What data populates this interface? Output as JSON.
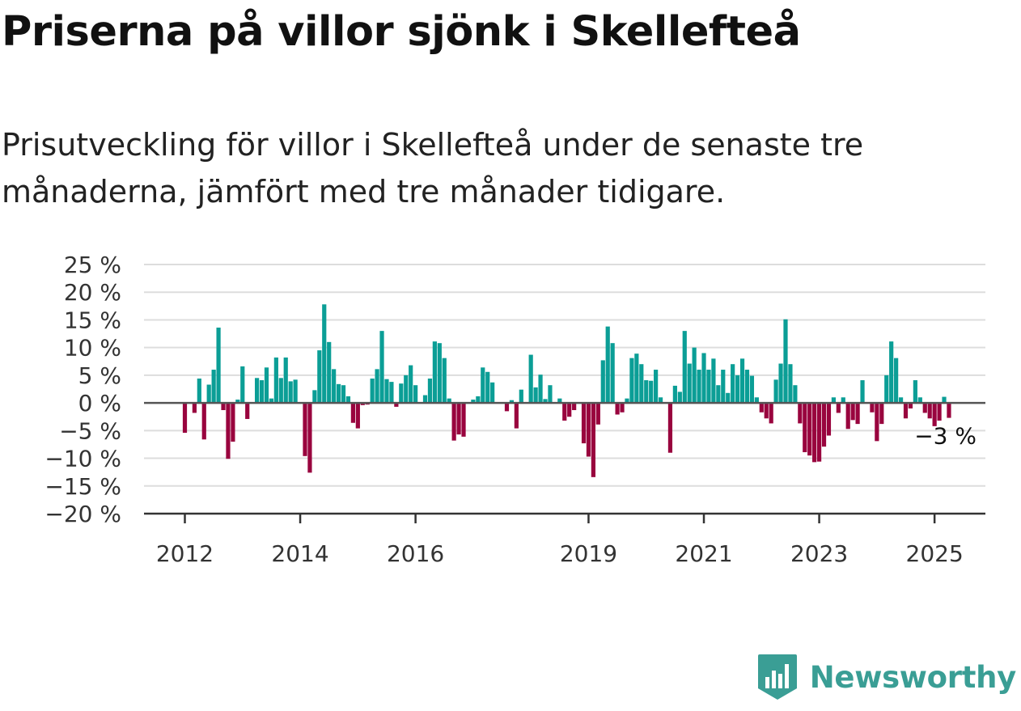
{
  "title": "Priserna på villor sjönk i Skellefteå",
  "subtitle": "Prisutveckling för villor i Skellefteå under de senaste tre månaderna, jämfört med tre månader tidigare.",
  "brand": {
    "name": "Newsworthy",
    "icon": "newsworthy-logo-icon",
    "color": "#3a9e95"
  },
  "colors": {
    "positive": "#0b9e96",
    "negative": "#99043e",
    "grid": "#dddddd",
    "zero_line": "#555555"
  },
  "chart_data": {
    "type": "bar",
    "title": "",
    "xlabel": "",
    "ylabel": "",
    "ylim": [
      -20,
      25
    ],
    "yticks": [
      25,
      20,
      15,
      10,
      5,
      0,
      -5,
      -10,
      -15,
      -20
    ],
    "ytick_labels": [
      "25 %",
      "20 %",
      "15 %",
      "10 %",
      "5 %",
      "0 %",
      "−5 %",
      "−10 %",
      "−15 %",
      "−20 %"
    ],
    "xticks": [
      {
        "label": "2012",
        "date": "2012-01"
      },
      {
        "label": "2014",
        "date": "2014-01"
      },
      {
        "label": "2016",
        "date": "2016-01"
      },
      {
        "label": "2019",
        "date": "2019-01"
      },
      {
        "label": "2021",
        "date": "2021-01"
      },
      {
        "label": "2023",
        "date": "2023-01"
      },
      {
        "label": "2025",
        "date": "2025-01"
      }
    ],
    "grid": true,
    "start": "2012-01",
    "frequency": "monthly",
    "series": [
      {
        "values": [
          -5.4,
          0,
          -1.8,
          4.4,
          -6.6,
          3.3,
          6.0,
          13.6,
          -1.3,
          -10.1,
          -7.0,
          0.6,
          6.6,
          -2.9,
          0,
          4.5,
          4.1,
          6.4,
          0.8,
          8.2,
          4.5,
          8.2,
          3.9,
          4.2,
          0,
          -9.6,
          -12.6,
          2.3,
          9.5,
          17.8,
          11.0,
          6.1,
          3.4,
          3.2,
          1.2,
          -3.6,
          -4.6,
          -0.4,
          -0.3,
          4.4,
          6.1,
          13.0,
          4.3,
          3.8,
          -0.7,
          3.5,
          5.0,
          6.8,
          3.2,
          0,
          1.4,
          4.4,
          11.1,
          10.8,
          8.1,
          0.8,
          -6.8,
          -5.7,
          -6.1,
          0,
          0.6,
          1.2,
          6.4,
          5.6,
          3.7,
          0,
          0,
          -1.5,
          0.5,
          -4.6,
          2.4,
          0,
          8.7,
          2.8,
          5.1,
          0.7,
          3.2,
          0,
          0.8,
          -3.2,
          -2.5,
          -1.3,
          0,
          -7.3,
          -9.7,
          -13.4,
          -3.9,
          7.7,
          13.8,
          10.8,
          -2.1,
          -1.7,
          0.8,
          8.1,
          8.9,
          7.0,
          4.1,
          4.0,
          6.0,
          1.0,
          0,
          -9.0,
          3.1,
          2.0,
          13.0,
          7.1,
          10.0,
          6.0,
          9.0,
          6.0,
          8.0,
          3.2,
          6.0,
          1.8,
          7.0,
          5.0,
          8.0,
          6.0,
          4.9,
          1.0,
          -1.7,
          -2.8,
          -3.7,
          4.2,
          7.1,
          15.1,
          7.0,
          3.2,
          -3.7,
          -8.9,
          -9.5,
          -10.7,
          -10.6,
          -7.9,
          -5.9,
          1.0,
          -1.8,
          1.0,
          -4.7,
          -3.1,
          -3.8,
          4.1,
          0,
          -1.7,
          -6.9,
          -3.8,
          5.0,
          11.1,
          8.1,
          1.0,
          -2.8,
          -1.0,
          4.1,
          1.0,
          -1.8,
          -2.8,
          -4.2,
          -3.2,
          1.1,
          -2.7
        ]
      }
    ],
    "annotation": {
      "label": "−3 %",
      "value": -3,
      "date": "2025-04"
    }
  }
}
